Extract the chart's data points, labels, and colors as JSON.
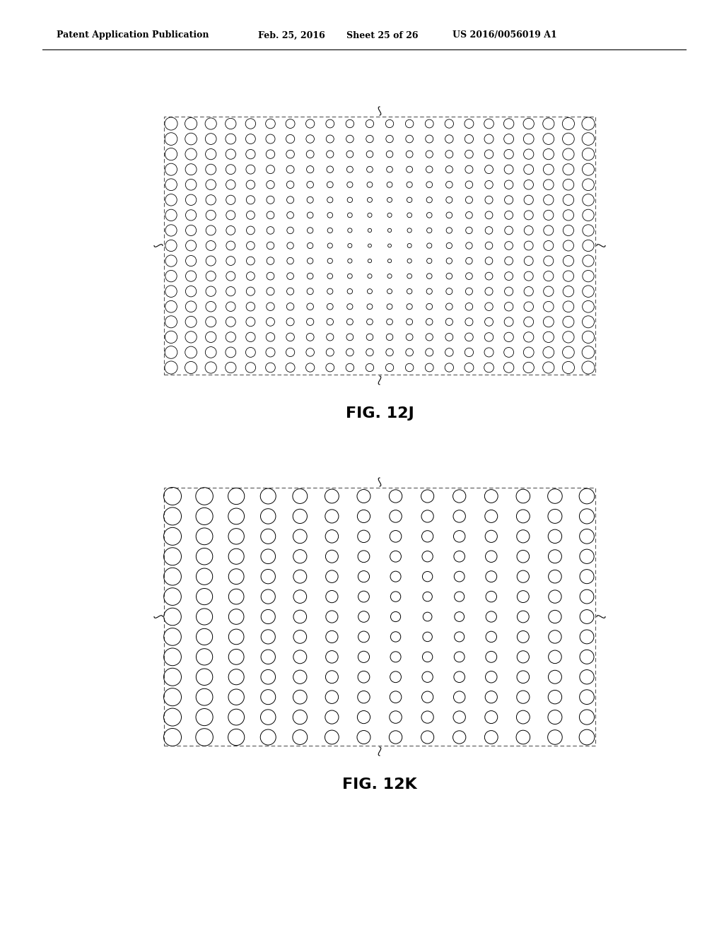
{
  "fig_width": 10.24,
  "fig_height": 13.2,
  "bg_color": "#ffffff",
  "header_text": "Patent Application Publication",
  "header_date": "Feb. 25, 2016",
  "header_sheet": "Sheet 25 of 26",
  "header_patent": "US 2016/0056019 A1",
  "fig_label_J": "FIG. 12J",
  "fig_label_K": "FIG. 12K"
}
